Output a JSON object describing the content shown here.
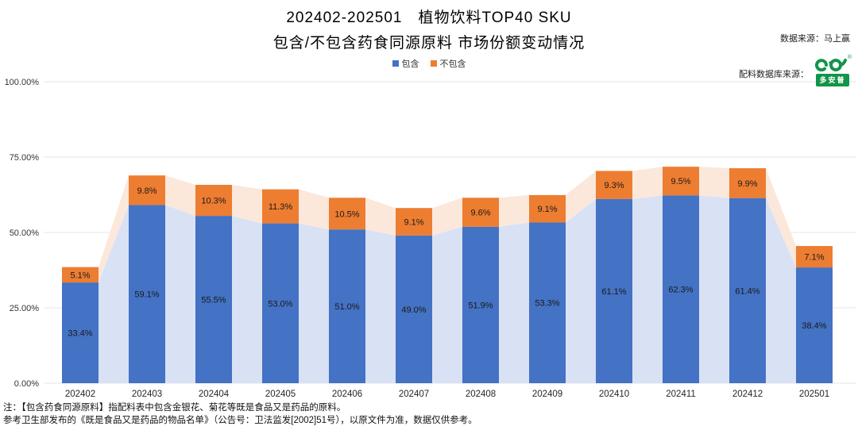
{
  "title": {
    "line1": "202402-202501　植物饮料TOP40 SKU",
    "line2": "包含/不包含药食同源原料 市场份额变动情况"
  },
  "sources": {
    "data_source": "数据来源：马上赢",
    "ingredient_source_label": "配料数据库来源：",
    "logo_text": "多安普",
    "registered_mark": "®",
    "logo_color": "#12954a"
  },
  "notes": [
    "注：【包含药食同源原料】指配料表中包含金银花、菊花等既是食品又是药品的原料。",
    "参考卫生部发布的《既是食品又是药品的物品名单》（公告号：卫法监发[2002]51号），以原文件为准，数据仅供参考。"
  ],
  "chart_data": {
    "type": "bar",
    "stacked": true,
    "title": "202402-202501 植物饮料TOP40 SKU 包含/不包含药食同源原料 市场份额变动情况",
    "categories": [
      "202402",
      "202403",
      "202404",
      "202405",
      "202406",
      "202407",
      "202408",
      "202409",
      "202410",
      "202411",
      "202412",
      "202501"
    ],
    "series": [
      {
        "name": "包含",
        "values": [
          33.4,
          59.1,
          55.5,
          53.0,
          51.0,
          49.0,
          51.9,
          53.3,
          61.1,
          62.3,
          61.4,
          38.4
        ],
        "color": "#4472C4",
        "area_color": "#D9E1F5"
      },
      {
        "name": "不包含",
        "values": [
          5.1,
          9.8,
          10.3,
          11.3,
          10.5,
          9.1,
          9.6,
          9.1,
          9.3,
          9.5,
          9.9,
          7.1
        ],
        "color": "#ED7D31",
        "area_color": "#FBE8DB"
      }
    ],
    "ylim": [
      0,
      100
    ],
    "yticks": [
      {
        "v": 0,
        "label": "0.00%"
      },
      {
        "v": 25,
        "label": "25.00%"
      },
      {
        "v": 50,
        "label": "50.00%"
      },
      {
        "v": 75,
        "label": "75.00%"
      },
      {
        "v": 100,
        "label": "100.00%"
      }
    ],
    "grid": true,
    "legend_position": "top",
    "label_color": "#1a1a1a",
    "axis_label_color": "#333333",
    "gridline_color": "#e4e4e4"
  }
}
